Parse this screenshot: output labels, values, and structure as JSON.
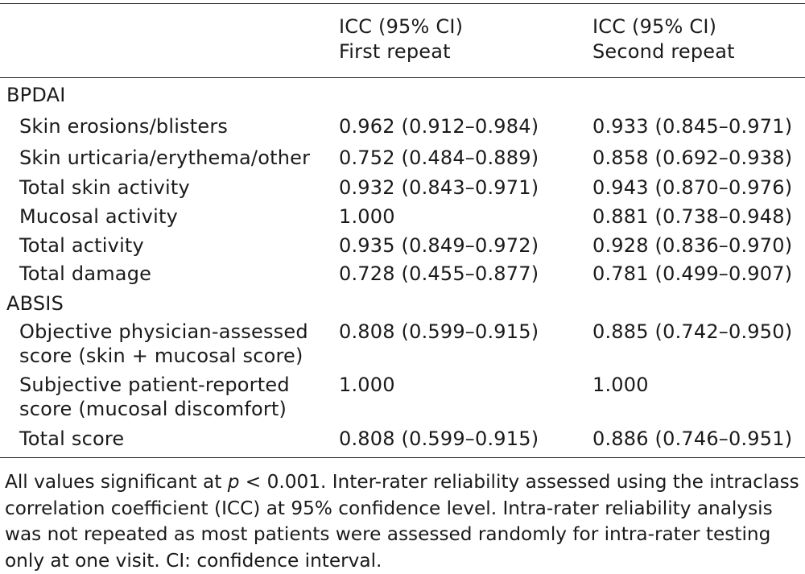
{
  "header": {
    "col1_line1": "ICC (95% CI)",
    "col1_line2": "First repeat",
    "col2_line1": "ICC (95% CI)",
    "col2_line2": "Second repeat"
  },
  "rows": [
    {
      "label": "BPDAI",
      "v1": "",
      "v2": ""
    },
    {
      "label": "Skin erosions/blisters",
      "v1": "0.962 (0.912–0.984)",
      "v2": "0.933 (0.845–0.971)"
    },
    {
      "label": "Skin urticaria/erythema/other",
      "v1": "0.752 (0.484–0.889)",
      "v2": "0.858 (0.692–0.938)"
    },
    {
      "label": "Total skin activity",
      "v1": "0.932 (0.843–0.971)",
      "v2": "0.943 (0.870–0.976)"
    },
    {
      "label": "Mucosal activity",
      "v1": "1.000",
      "v2": "0.881 (0.738–0.948)"
    },
    {
      "label": "Total activity",
      "v1": "0.935 (0.849–0.972)",
      "v2": "0.928 (0.836–0.970)"
    },
    {
      "label": "Total damage",
      "v1": "0.728 (0.455–0.877)",
      "v2": "0.781 (0.499–0.907)"
    },
    {
      "label": "ABSIS",
      "v1": "",
      "v2": ""
    },
    {
      "label": "Objective physician-assessed\nscore (skin + mucosal score)",
      "v1": "0.808 (0.599–0.915)",
      "v2": "0.885 (0.742–0.950)"
    },
    {
      "label": "Subjective patient-reported\nscore (mucosal discomfort)",
      "v1": "1.000",
      "v2": "1.000"
    },
    {
      "label": "Total score",
      "v1": "0.808 (0.599–0.915)",
      "v2": "0.886 (0.746–0.951)"
    }
  ],
  "footnote": {
    "prefix": "All values significant at ",
    "p_symbol": "p",
    "rest": " < 0.001. Inter-rater reliability assessed using the intraclass correlation coefficient (ICC) at 95% confidence level. Intra-rater reliability analysis was not repeated as most patients were assessed randomly for intra-rater testing only at one visit. CI: confidence interval."
  }
}
